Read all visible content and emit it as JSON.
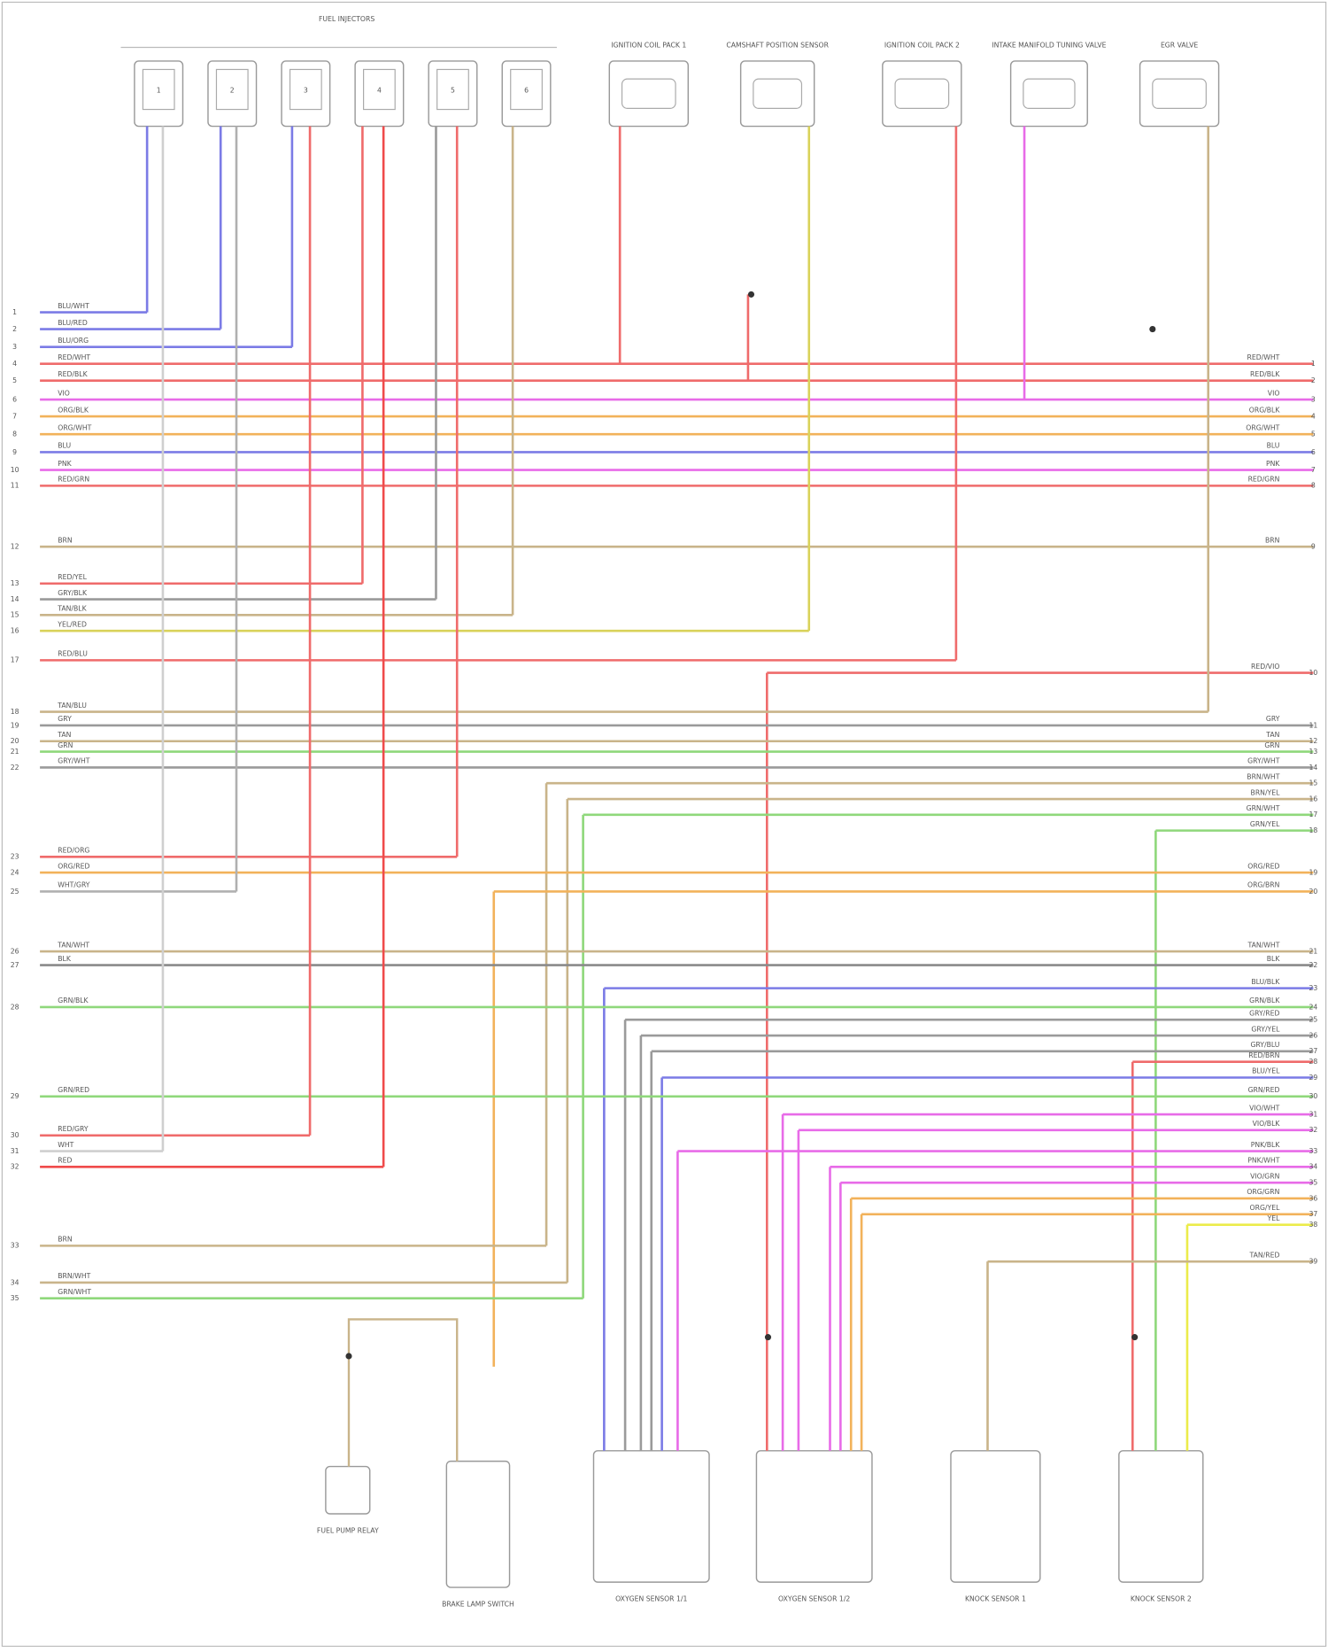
{
  "injector_group": {
    "title": "FUEL INJECTORS",
    "injectors": [
      "1",
      "2",
      "3",
      "4",
      "5",
      "6"
    ]
  },
  "top_components": [
    {
      "label": "IGNITION COIL PACK 1"
    },
    {
      "label": "CAMSHAFT POSITION SENSOR"
    },
    {
      "label": "IGNITION COIL PACK 2"
    },
    {
      "label": "INTAKE MANIFOLD TUNING VALVE"
    },
    {
      "label": "EGR VALVE"
    }
  ],
  "bottom_components": [
    {
      "label": "FUEL PUMP RELAY"
    },
    {
      "label": "BRAKE LAMP SWITCH"
    },
    {
      "label": "OXYGEN SENSOR 1/1"
    },
    {
      "label": "OXYGEN SENSOR 1/2"
    },
    {
      "label": "KNOCK SENSOR 1"
    },
    {
      "label": "KNOCK SENSOR 2"
    }
  ],
  "wires": [
    {
      "left_pin": "1",
      "code": "BLU/WHT",
      "color": "#7b7be6"
    },
    {
      "left_pin": "2",
      "code": "BLU/RED",
      "color": "#7b7be6"
    },
    {
      "left_pin": "3",
      "code": "BLU/ORG",
      "color": "#7b7be6"
    },
    {
      "left_pin": "4",
      "right_pin": "1",
      "code": "RED/WHT",
      "color": "#ef6b6b"
    },
    {
      "left_pin": "5",
      "right_pin": "2",
      "code": "RED/BLK",
      "color": "#ef6b6b"
    },
    {
      "left_pin": "6",
      "right_pin": "3",
      "code": "VIO",
      "color": "#e86be8"
    },
    {
      "left_pin": "7",
      "right_pin": "4",
      "code": "ORG/BLK",
      "color": "#f2b25a"
    },
    {
      "left_pin": "8",
      "right_pin": "5",
      "code": "ORG/WHT",
      "color": "#f2b25a"
    },
    {
      "left_pin": "9",
      "right_pin": "6",
      "code": "BLU",
      "color": "#7b7be6"
    },
    {
      "left_pin": "10",
      "right_pin": "7",
      "code": "PNK",
      "color": "#e86be8"
    },
    {
      "left_pin": "11",
      "right_pin": "8",
      "code": "RED/GRN",
      "color": "#ef6b6b"
    },
    {
      "left_pin": "12",
      "right_pin": "9",
      "code": "BRN",
      "color": "#c9b48a"
    },
    {
      "left_pin": "13",
      "code": "RED/YEL",
      "color": "#ef6b6b"
    },
    {
      "left_pin": "14",
      "code": "GRY/BLK",
      "color": "#9a9a9a"
    },
    {
      "left_pin": "15",
      "code": "TAN/BLK",
      "color": "#c9b48a"
    },
    {
      "left_pin": "16",
      "code": "YEL/RED",
      "color": "#d9d25a"
    },
    {
      "left_pin": "17",
      "code": "RED/BLU",
      "color": "#ef6b6b"
    },
    {
      "right_pin": "10",
      "code": "RED/VIO",
      "color": "#ef6b6b"
    },
    {
      "left_pin": "18",
      "code": "TAN/BLU",
      "color": "#c9b48a"
    },
    {
      "left_pin": "19",
      "right_pin": "11",
      "code": "GRY",
      "color": "#9a9a9a"
    },
    {
      "left_pin": "20",
      "right_pin": "12",
      "code": "TAN",
      "color": "#c9b48a"
    },
    {
      "left_pin": "21",
      "right_pin": "13",
      "code": "GRN",
      "color": "#8fd87b"
    },
    {
      "left_pin": "22",
      "right_pin": "14",
      "code": "GRY/WHT",
      "color": "#9a9a9a"
    },
    {
      "right_pin": "15",
      "code": "BRN/WHT",
      "color": "#c9b48a"
    },
    {
      "right_pin": "16",
      "code": "BRN/YEL",
      "color": "#c9b48a"
    },
    {
      "right_pin": "17",
      "code": "GRN/WHT",
      "color": "#8fd87b"
    },
    {
      "right_pin": "18",
      "code": "GRN/YEL",
      "color": "#8fd87b"
    },
    {
      "left_pin": "23",
      "code": "RED/ORG",
      "color": "#ef6b6b"
    },
    {
      "left_pin": "24",
      "right_pin": "19",
      "code": "ORG/RED",
      "color": "#f2b25a"
    },
    {
      "left_pin": "25",
      "code": "WHT/GRY",
      "color": "#b0b0b0"
    },
    {
      "right_pin": "20",
      "code": "ORG/BRN",
      "color": "#f2b25a"
    },
    {
      "left_pin": "26",
      "right_pin": "21",
      "code": "TAN/WHT",
      "color": "#c9b48a"
    },
    {
      "left_pin": "27",
      "right_pin": "22",
      "code": "BLK",
      "color": "#8a8a8a"
    },
    {
      "right_pin": "23",
      "code": "BLU/BLK",
      "color": "#7b7be6"
    },
    {
      "left_pin": "28",
      "right_pin": "24",
      "code": "GRN/BLK",
      "color": "#8fd87b"
    },
    {
      "right_pin": "25",
      "code": "GRY/RED",
      "color": "#9a9a9a"
    },
    {
      "right_pin": "26",
      "code": "GRY/YEL",
      "color": "#9a9a9a"
    },
    {
      "right_pin": "27",
      "code": "GRY/BLU",
      "color": "#9a9a9a"
    },
    {
      "right_pin": "28",
      "code": "RED/BRN",
      "color": "#ef6b6b"
    },
    {
      "right_pin": "29",
      "code": "BLU/YEL",
      "color": "#7b7be6"
    },
    {
      "left_pin": "29",
      "right_pin": "30",
      "code": "GRN/RED",
      "color": "#8fd87b"
    },
    {
      "right_pin": "31",
      "code": "VIO/WHT",
      "color": "#e86be8"
    },
    {
      "right_pin": "32",
      "code": "VIO/BLK",
      "color": "#e86be8"
    },
    {
      "left_pin": "30",
      "code": "RED/GRY",
      "color": "#ef6b6b"
    },
    {
      "right_pin": "33",
      "code": "PNK/BLK",
      "color": "#e86be8"
    },
    {
      "left_pin": "31",
      "code": "WHT",
      "color": "#cfcfcf"
    },
    {
      "left_pin": "32",
      "code": "RED",
      "color": "#ef4b4b"
    },
    {
      "right_pin": "34",
      "code": "PNK/WHT",
      "color": "#e86be8"
    },
    {
      "right_pin": "35",
      "code": "VIO/GRN",
      "color": "#e86be8"
    },
    {
      "right_pin": "36",
      "code": "ORG/GRN",
      "color": "#f2b25a"
    },
    {
      "right_pin": "37",
      "code": "ORG/YEL",
      "color": "#f2b25a"
    },
    {
      "right_pin": "38",
      "code": "YEL",
      "color": "#ecec4a"
    },
    {
      "left_pin": "33",
      "code": "BRN",
      "color": "#c9b48a"
    },
    {
      "right_pin": "39",
      "code": "TAN/RED",
      "color": "#c9b48a"
    },
    {
      "left_pin": "34",
      "code": "BRN/WHT",
      "color": "#c9b48a"
    },
    {
      "left_pin": "35",
      "code": "GRN/WHT",
      "color": "#8fd87b"
    }
  ]
}
